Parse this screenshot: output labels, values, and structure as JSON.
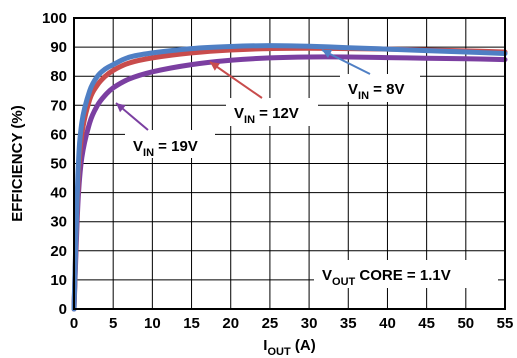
{
  "chart_data": {
    "type": "line",
    "xlabel": {
      "main": "I",
      "sub": "OUT",
      "rest": " (A)"
    },
    "ylabel": "EFFICIENCY (%)",
    "xlim": [
      0,
      55
    ],
    "ylim": [
      0,
      100
    ],
    "x_ticks": [
      0,
      5,
      10,
      15,
      20,
      25,
      30,
      35,
      40,
      45,
      50,
      55
    ],
    "y_ticks": [
      0,
      10,
      20,
      30,
      40,
      50,
      60,
      70,
      80,
      90,
      100
    ],
    "grid": true,
    "series": [
      {
        "name": "V_IN = 19V",
        "color": "#7b3fa1",
        "x": [
          0,
          0.5,
          1,
          2,
          3,
          4,
          5,
          7,
          10,
          15,
          20,
          25,
          30,
          35,
          40,
          45,
          50,
          55
        ],
        "y": [
          0,
          36,
          52,
          64,
          70,
          73.5,
          76,
          79,
          81.5,
          84,
          85.5,
          86.3,
          86.6,
          86.6,
          86.4,
          86.2,
          86,
          85.7
        ]
      },
      {
        "name": "V_IN = 12V",
        "color": "#c84c4c",
        "x": [
          0,
          0.5,
          1,
          2,
          3,
          4,
          5,
          7,
          10,
          15,
          20,
          25,
          30,
          35,
          40,
          45,
          50,
          55
        ],
        "y": [
          0,
          42,
          60,
          72,
          77,
          80,
          82,
          84.5,
          86.3,
          88,
          89,
          89.5,
          89.6,
          89.5,
          89.3,
          89,
          88.7,
          88.3
        ]
      },
      {
        "name": "V_IN = 8V",
        "color": "#4f7fc4",
        "x": [
          0,
          0.5,
          1,
          2,
          3,
          4,
          5,
          7,
          10,
          15,
          20,
          25,
          30,
          35,
          40,
          45,
          50,
          55
        ],
        "y": [
          0,
          46,
          64,
          75,
          80,
          82.5,
          84,
          86.5,
          88,
          89.5,
          90.2,
          90.5,
          90.3,
          89.8,
          89.3,
          88.8,
          88.3,
          87.8
        ]
      }
    ],
    "annotations": [
      {
        "main": "V",
        "sub": "IN",
        "rest": " = 8V",
        "series": 2
      },
      {
        "main": "V",
        "sub": "IN",
        "rest": " = 12V",
        "series": 1
      },
      {
        "main": "V",
        "sub": "IN",
        "rest": " = 19V",
        "series": 0
      },
      {
        "main": "V",
        "sub": "OUT",
        "rest": " CORE = 1.1V"
      }
    ]
  }
}
